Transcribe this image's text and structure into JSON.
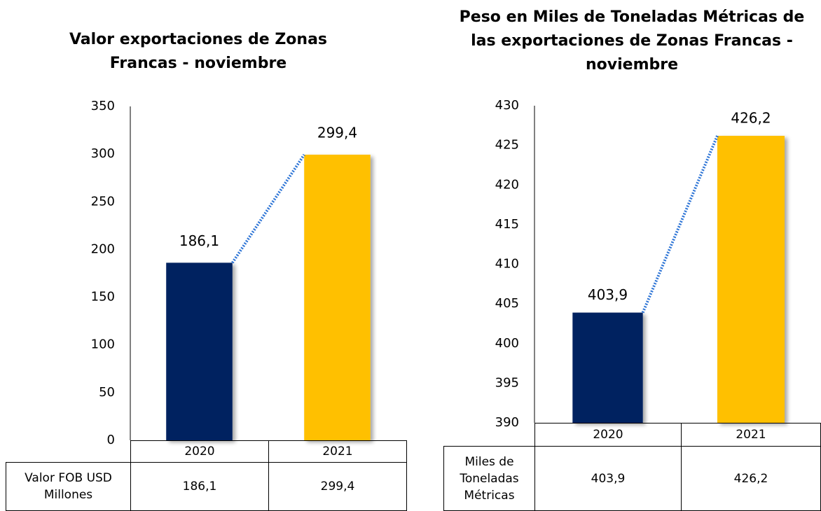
{
  "chart_data": [
    {
      "type": "bar",
      "title": "Valor exportaciones de Zonas Francas - noviembre",
      "categories": [
        "2020",
        "2021"
      ],
      "series": [
        {
          "name": "Valor FOB USD Millones",
          "values": [
            186.1,
            299.4
          ],
          "value_labels": [
            "186,1",
            "299,4"
          ]
        }
      ],
      "colors": [
        "#002060",
        "#ffc000"
      ],
      "ylim": [
        0,
        350
      ],
      "yticks": [
        0,
        50,
        100,
        150,
        200,
        250,
        300,
        350
      ],
      "grid": false
    },
    {
      "type": "bar",
      "title": "Peso en Miles de Toneladas Métricas de las exportaciones de Zonas Francas - noviembre",
      "categories": [
        "2020",
        "2021"
      ],
      "series": [
        {
          "name": "Miles de Toneladas Métricas",
          "values": [
            403.9,
            426.2
          ],
          "value_labels": [
            "403,9",
            "426,2"
          ]
        }
      ],
      "colors": [
        "#002060",
        "#ffc000"
      ],
      "ylim": [
        390,
        430
      ],
      "yticks": [
        390,
        395,
        400,
        405,
        410,
        415,
        420,
        425,
        430
      ],
      "grid": false
    }
  ]
}
